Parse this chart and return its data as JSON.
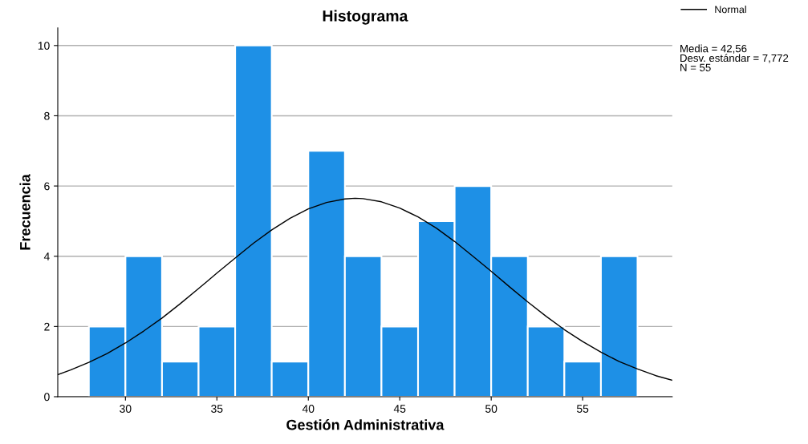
{
  "chart_data": {
    "type": "histogram",
    "title": "Histograma",
    "xlabel": "Gestión Administrativa",
    "ylabel": "Frecuencia",
    "bins": [
      28,
      30,
      32,
      34,
      36,
      38,
      40,
      42,
      44,
      46,
      48,
      50,
      52,
      54,
      56,
      58
    ],
    "values": [
      2,
      4,
      1,
      2,
      10,
      1,
      7,
      4,
      2,
      5,
      6,
      4,
      2,
      1,
      4
    ],
    "color": "#1e90e6",
    "series": [
      {
        "name": "Normal",
        "type": "line",
        "color": "#000000",
        "x": [
          26.3,
          27,
          28,
          29,
          30,
          31,
          32,
          33,
          34,
          35,
          36,
          37,
          38,
          39,
          40,
          41,
          42,
          42.56,
          43,
          44,
          45,
          46,
          47,
          48,
          49,
          50,
          51,
          52,
          53,
          54,
          55,
          56,
          57,
          58,
          59,
          59.9
        ],
        "values": [
          0.63,
          0.76,
          0.98,
          1.23,
          1.53,
          1.87,
          2.24,
          2.65,
          3.08,
          3.52,
          3.95,
          4.37,
          4.75,
          5.08,
          5.35,
          5.53,
          5.63,
          5.65,
          5.64,
          5.55,
          5.37,
          5.12,
          4.8,
          4.42,
          4.0,
          3.57,
          3.13,
          2.7,
          2.29,
          1.91,
          1.57,
          1.27,
          1.0,
          0.79,
          0.6,
          0.47
        ]
      }
    ],
    "xlim": [
      26.3,
      59.9
    ],
    "xticks": [
      30,
      35,
      40,
      45,
      50,
      55
    ],
    "ylim": [
      0,
      10.5
    ],
    "yticks": [
      0,
      2,
      4,
      6,
      8,
      10
    ],
    "grid": "y",
    "legend": "top right",
    "annotations": [
      "Media = 42,56",
      "Desv. estándar = 7,772",
      "N = 55"
    ]
  }
}
